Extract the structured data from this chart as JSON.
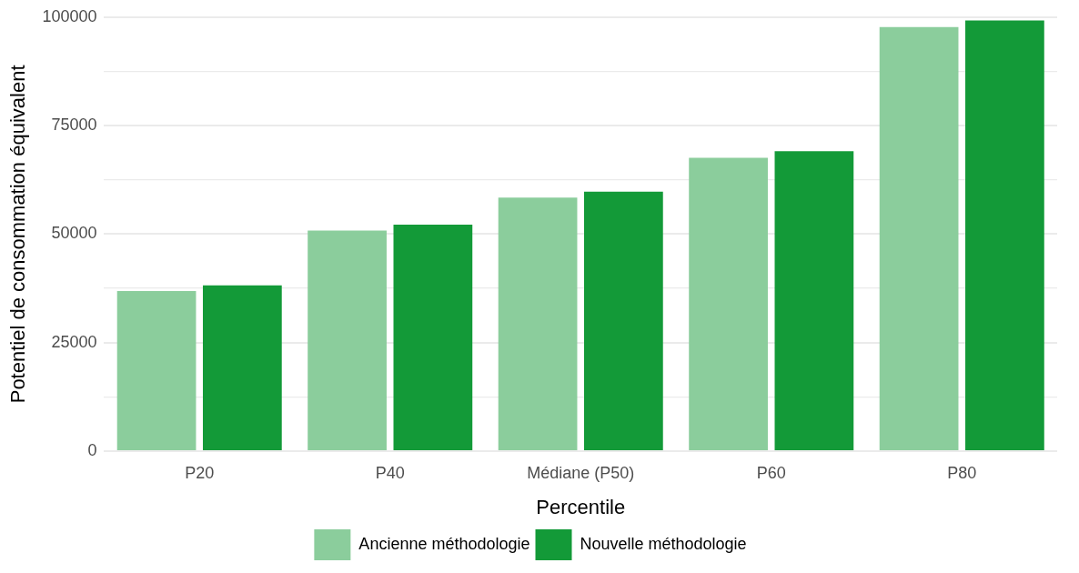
{
  "chart_data": {
    "type": "bar",
    "xlabel": "Percentile",
    "ylabel": "Potentiel de consommation équivalent",
    "categories": [
      "P20",
      "P40",
      "Médiane (P50)",
      "P60",
      "P80"
    ],
    "series": [
      {
        "name": "Ancienne méthodologie",
        "color": "#8bcd9c",
        "values": [
          36900,
          50800,
          58400,
          67600,
          97700
        ]
      },
      {
        "name": "Nouvelle méthodologie",
        "color": "#139a38",
        "values": [
          38200,
          52200,
          59800,
          69100,
          99200
        ]
      }
    ],
    "ylim": [
      0,
      100000
    ],
    "yticks": [
      0,
      {
        "value": 12500,
        "label": null
      },
      25000,
      {
        "value": 37500,
        "label": null
      },
      50000,
      {
        "value": 62500,
        "label": null
      },
      75000,
      {
        "value": 87500,
        "label": null
      },
      100000
    ],
    "grid": "y",
    "legend": "bottom"
  }
}
